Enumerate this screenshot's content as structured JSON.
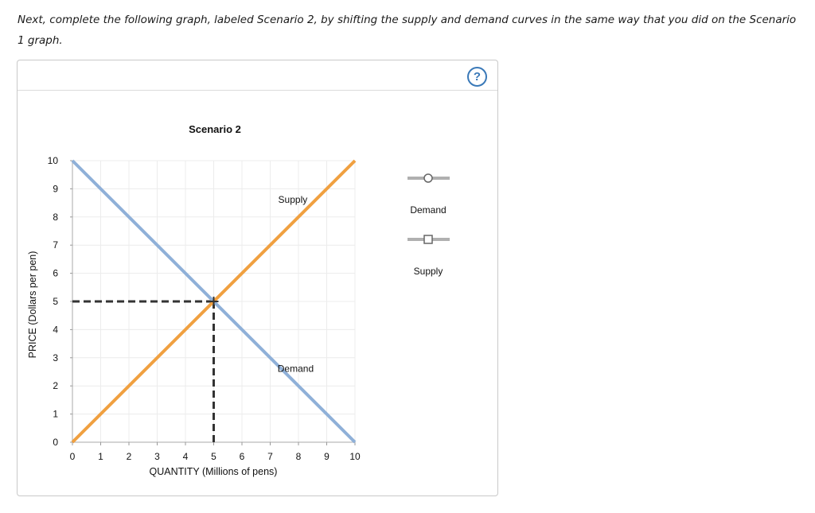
{
  "instructions": "Next, complete the following graph, labeled Scenario 2, by shifting the supply and demand curves in the same way that you did on the Scenario 1 graph.",
  "help_label": "?",
  "palette": [
    {
      "label": "Demand",
      "marker": "circle",
      "color": "#b0b0b0"
    },
    {
      "label": "Supply",
      "marker": "square",
      "color": "#b0b0b0"
    }
  ],
  "chart_data": {
    "type": "line",
    "title": "Scenario 2",
    "xlabel": "QUANTITY (Millions of pens)",
    "ylabel": "PRICE (Dollars per pen)",
    "xlim": [
      0,
      10
    ],
    "ylim": [
      0,
      10
    ],
    "xticks": [
      "0",
      "1",
      "2",
      "3",
      "4",
      "5",
      "6",
      "7",
      "8",
      "9",
      "10"
    ],
    "yticks": [
      "0",
      "1",
      "2",
      "3",
      "4",
      "5",
      "6",
      "7",
      "8",
      "9",
      "10"
    ],
    "grid": true,
    "series": [
      {
        "name": "Demand",
        "color": "#8fb0d8",
        "points": [
          [
            0,
            10
          ],
          [
            10,
            0
          ]
        ],
        "label_at": [
          7.9,
          2.5
        ]
      },
      {
        "name": "Supply",
        "color": "#f0a040",
        "points": [
          [
            0,
            0
          ],
          [
            10,
            10
          ]
        ],
        "label_at": [
          7.8,
          8.5
        ]
      }
    ],
    "equilibrium": {
      "x": 5,
      "y": 5
    }
  }
}
